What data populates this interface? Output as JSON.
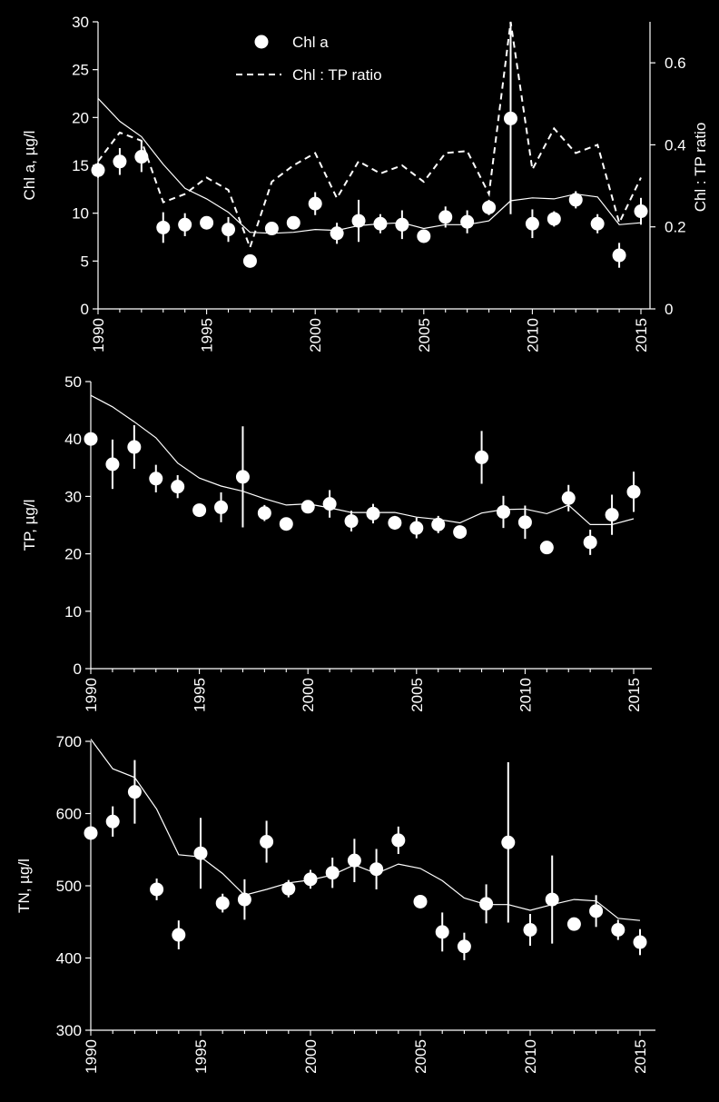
{
  "chart_data": [
    {
      "type": "scatter",
      "xlim": [
        1990,
        2016
      ],
      "x_ticks": [
        "1990",
        "1995",
        "2000",
        "2005",
        "2010",
        "2015"
      ],
      "ylabel": "Chl a, µg/l",
      "ylim": [
        0,
        30
      ],
      "y_ticks": [
        "0",
        "5",
        "10",
        "15",
        "20",
        "25",
        "30"
      ],
      "y2label": "Chl : TP ratio",
      "y2lim": [
        0,
        0.7
      ],
      "y2_ticks": [
        "0",
        "0.2",
        "0.4",
        "0.6"
      ],
      "legend": {
        "position": "top-center",
        "items": [
          "Chl a",
          "Chl : TP ratio"
        ]
      },
      "grid": false,
      "series": [
        {
          "name": "Chl a",
          "kind": "points-with-error-bars",
          "x": [
            1990,
            1991,
            1992,
            1993,
            1994,
            1995,
            1996,
            1997,
            1998,
            1999,
            2000,
            2001,
            2002,
            2003,
            2004,
            2005,
            2006,
            2007,
            2008,
            2009,
            2010,
            2011,
            2012,
            2013,
            2014,
            2015
          ],
          "y": [
            14.5,
            15.4,
            15.9,
            8.5,
            8.8,
            9.0,
            8.3,
            5.0,
            8.4,
            9.0,
            11.0,
            7.9,
            9.2,
            8.9,
            8.8,
            7.6,
            9.6,
            9.1,
            10.6,
            19.9,
            8.9,
            9.4,
            11.4,
            8.9,
            5.6,
            10.2
          ],
          "err": [
            0.8,
            1.4,
            1.6,
            1.6,
            1.2,
            0.5,
            1.3,
            0.2,
            0.6,
            0.4,
            1.2,
            1.1,
            2.2,
            1.0,
            1.5,
            0.6,
            1.1,
            1.2,
            0.8,
            10.0,
            1.5,
            0.8,
            0.9,
            1.0,
            1.3,
            1.4
          ]
        },
        {
          "kind": "trend",
          "x": [
            1990,
            1991,
            1992,
            1993,
            1994,
            1995,
            1996,
            1997,
            1998,
            1999,
            2000,
            2001,
            2002,
            2003,
            2004,
            2005,
            2006,
            2007,
            2008,
            2009,
            2010,
            2011,
            2012,
            2013,
            2014,
            2015
          ],
          "y": [
            22.0,
            19.6,
            18.0,
            15.1,
            12.6,
            11.5,
            10.1,
            8.0,
            7.9,
            8.0,
            8.3,
            8.2,
            8.7,
            8.9,
            9.0,
            8.4,
            8.8,
            8.8,
            9.2,
            11.3,
            11.6,
            11.5,
            12.0,
            11.7,
            8.8,
            9.0
          ]
        },
        {
          "name": "Chl : TP ratio",
          "kind": "dashed-line",
          "axis": "right",
          "x": [
            1990,
            1991,
            1992,
            1993,
            1994,
            1995,
            1996,
            1997,
            1998,
            1999,
            2000,
            2001,
            2002,
            2003,
            2004,
            2005,
            2006,
            2007,
            2008,
            2009,
            2010,
            2011,
            2012,
            2013,
            2014,
            2015
          ],
          "y": [
            0.36,
            0.43,
            0.41,
            0.26,
            0.28,
            0.32,
            0.29,
            0.15,
            0.31,
            0.35,
            0.38,
            0.27,
            0.36,
            0.33,
            0.35,
            0.31,
            0.38,
            0.385,
            0.28,
            0.7,
            0.34,
            0.44,
            0.38,
            0.4,
            0.21,
            0.32
          ]
        }
      ]
    },
    {
      "type": "scatter",
      "xlim": [
        1990,
        2016
      ],
      "x_ticks": [
        "1990",
        "1995",
        "2000",
        "2005",
        "2010",
        "2015"
      ],
      "ylabel": "TP, µg/l",
      "ylim": [
        0,
        50
      ],
      "y_ticks": [
        "0",
        "10",
        "20",
        "30",
        "40",
        "50"
      ],
      "grid": false,
      "series": [
        {
          "kind": "points-with-error-bars",
          "x": [
            1990,
            1991,
            1992,
            1993,
            1994,
            1995,
            1996,
            1997,
            1998,
            1999,
            2000,
            2001,
            2002,
            2003,
            2004,
            2005,
            2006,
            2007,
            2008,
            2009,
            2010,
            2011,
            2012,
            2013,
            2014,
            2015
          ],
          "y": [
            40.0,
            35.6,
            38.6,
            33.1,
            31.7,
            27.6,
            28.1,
            33.4,
            27.1,
            25.2,
            28.2,
            28.7,
            25.7,
            27.0,
            25.4,
            24.5,
            25.1,
            23.8,
            36.8,
            27.3,
            25.5,
            21.1,
            29.7,
            22.0,
            26.8,
            30.8
          ],
          "err": [
            0.5,
            4.3,
            3.8,
            2.4,
            2.0,
            0.6,
            2.6,
            8.8,
            1.4,
            0.5,
            0.6,
            2.4,
            1.8,
            1.7,
            1.2,
            1.8,
            1.5,
            0.6,
            4.6,
            2.8,
            2.9,
            0.8,
            2.3,
            2.2,
            3.5,
            3.5
          ]
        },
        {
          "kind": "trend",
          "x": [
            1990,
            1991,
            1992,
            1993,
            1994,
            1995,
            1996,
            1997,
            1998,
            1999,
            2000,
            2001,
            2002,
            2003,
            2004,
            2005,
            2006,
            2007,
            2008,
            2009,
            2010,
            2011,
            2012,
            2013,
            2014,
            2015
          ],
          "y": [
            47.6,
            45.6,
            43.0,
            40.2,
            35.8,
            33.2,
            31.8,
            30.9,
            29.6,
            28.5,
            28.7,
            28.0,
            27.2,
            27.2,
            27.2,
            26.4,
            26.0,
            25.4,
            27.1,
            27.7,
            27.8,
            27.0,
            28.5,
            25.1,
            25.1,
            26.1
          ]
        }
      ]
    },
    {
      "type": "scatter",
      "xlim": [
        1990,
        2016
      ],
      "x_ticks": [
        "1990",
        "1995",
        "2000",
        "2005",
        "2010",
        "2015"
      ],
      "ylabel": "TN, µg/l",
      "ylim": [
        300,
        700
      ],
      "y_ticks": [
        "300",
        "400",
        "500",
        "600",
        "700"
      ],
      "grid": false,
      "series": [
        {
          "kind": "points-with-error-bars",
          "x": [
            1990,
            1991,
            1992,
            1993,
            1994,
            1995,
            1996,
            1997,
            1998,
            1999,
            2000,
            2001,
            2002,
            2003,
            2004,
            2005,
            2006,
            2007,
            2008,
            2009,
            2010,
            2011,
            2012,
            2013,
            2014,
            2015
          ],
          "y": [
            573,
            589,
            630,
            495,
            432,
            545,
            476,
            481,
            561,
            496,
            509,
            518,
            535,
            523,
            563,
            478,
            436,
            416,
            475,
            560,
            439,
            481,
            447,
            465,
            439,
            422
          ],
          "err": [
            5,
            21,
            44,
            15,
            20,
            49,
            13,
            28,
            29,
            12,
            13,
            21,
            30,
            28,
            19,
            8,
            27,
            19,
            27,
            111,
            22,
            61,
            4,
            22,
            14,
            18
          ]
        },
        {
          "kind": "trend",
          "x": [
            1990,
            1991,
            1992,
            1993,
            1994,
            1995,
            1996,
            1997,
            1998,
            1999,
            2000,
            2001,
            2002,
            2003,
            2004,
            2005,
            2006,
            2007,
            2008,
            2009,
            2010,
            2011,
            2012,
            2013,
            2014,
            2015
          ],
          "y": [
            703,
            662,
            650,
            606,
            543,
            540,
            517,
            487,
            495,
            504,
            508,
            515,
            529,
            517,
            530,
            524,
            507,
            483,
            474,
            474,
            466,
            474,
            481,
            479,
            455,
            452
          ]
        }
      ]
    }
  ]
}
